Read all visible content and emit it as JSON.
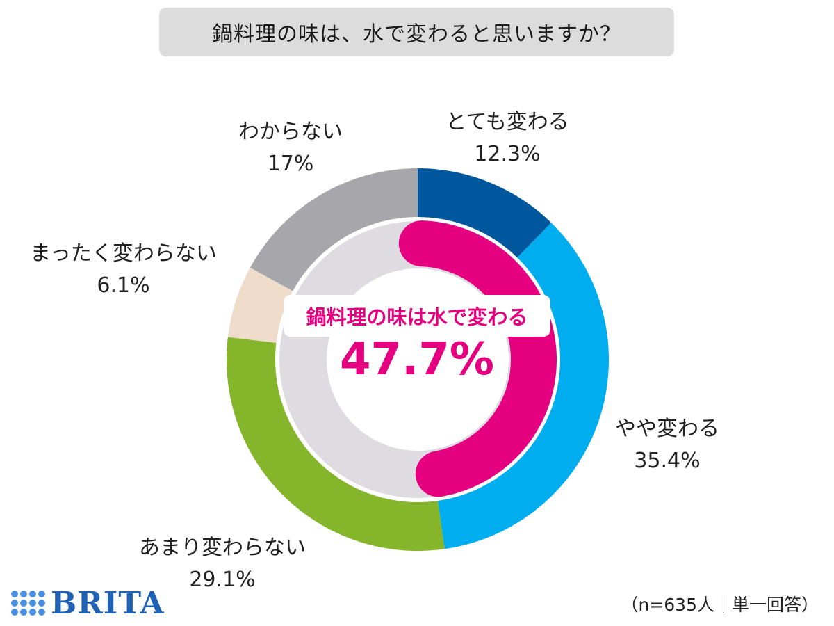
{
  "title": "鍋料理の味は、水で変わると思いますか？",
  "chart_data": {
    "type": "pie",
    "donut": true,
    "start_angle_deg": 0,
    "direction": "clockwise",
    "outer_ring": {
      "slices": [
        {
          "label": "とても変わる",
          "value": 12.3,
          "value_label": "12.3%",
          "color": "#00579d"
        },
        {
          "label": "やや変わる",
          "value": 35.4,
          "value_label": "35.4%",
          "color": "#00aeef"
        },
        {
          "label": "あまり変わらない",
          "value": 29.1,
          "value_label": "29.1%",
          "color": "#84b52a"
        },
        {
          "label": "まったく変わらない",
          "value": 6.1,
          "value_label": "6.1%",
          "color": "#f0dccb"
        },
        {
          "label": "わからない",
          "value": 17,
          "value_label": "17%",
          "color": "#a7a6ab"
        }
      ]
    },
    "inner_ring": {
      "label": "鍋料理の味は水で変わる",
      "value": 47.7,
      "value_label": "47.7%",
      "color": "#e4007f",
      "track_color": "#dedce0"
    }
  },
  "footnote": "（n=635人｜単一回答）",
  "logo": {
    "text": "BRITA",
    "color": "#1f62b3"
  }
}
